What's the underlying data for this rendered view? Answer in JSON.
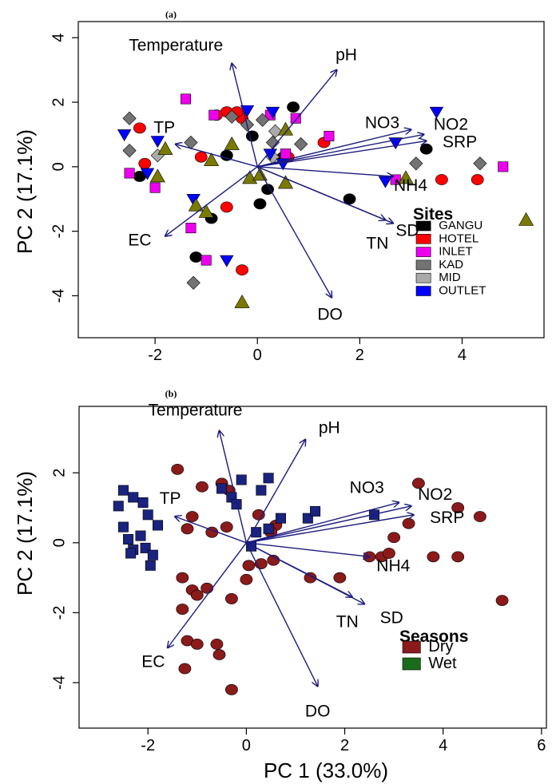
{
  "chart_data": [
    {
      "type": "scatter",
      "panel_tag": "(a)",
      "xlabel": "",
      "ylabel": "PC 2 (17.1%)",
      "xlim": [
        -3.5,
        5.6
      ],
      "ylim": [
        -5.3,
        4.5
      ],
      "xticks": [
        -2,
        0,
        2,
        4
      ],
      "yticks": [
        -4,
        -2,
        0,
        2,
        4
      ],
      "vectors": [
        {
          "label": "Temperature",
          "x": -0.5,
          "y": 3.2
        },
        {
          "label": "pH",
          "x": 1.55,
          "y": 3.0
        },
        {
          "label": "NO3",
          "x": 3.0,
          "y": 1.15
        },
        {
          "label": "NO2",
          "x": 3.25,
          "y": 1.0
        },
        {
          "label": "SRP",
          "x": 3.3,
          "y": 0.8
        },
        {
          "label": "NH4",
          "x": 2.65,
          "y": -0.3
        },
        {
          "label": "TP",
          "x": -1.6,
          "y": 0.7
        },
        {
          "label": "EC",
          "x": -1.8,
          "y": -2.15
        },
        {
          "label": "SD",
          "x": 2.65,
          "y": -1.75
        },
        {
          "label": "TN",
          "x": 2.5,
          "y": -1.65
        },
        {
          "label": "DO",
          "x": 1.45,
          "y": -4.05
        }
      ],
      "legend": {
        "title": "Sites",
        "items": [
          {
            "label": "GANGU",
            "color": "#000000",
            "shape": "circle"
          },
          {
            "label": "HOTEL",
            "color": "#ff0000",
            "shape": "circle"
          },
          {
            "label": "INLET",
            "color": "#ee00ee",
            "shape": "square"
          },
          {
            "label": "KAD",
            "color": "#737373",
            "shape": "diamond"
          },
          {
            "label": "MID",
            "color": "#aaaaaa",
            "shape": "square"
          },
          {
            "label": "OUTLET",
            "color": "#0000ff",
            "shape": "triangle-down"
          }
        ],
        "position": "bottom-right"
      },
      "series": [
        {
          "name": "GANGU",
          "color": "#000000",
          "shape": "circle",
          "points": [
            [
              -2.3,
              -0.3
            ],
            [
              -0.9,
              -1.6
            ],
            [
              -1.2,
              -2.8
            ],
            [
              -0.1,
              0.95
            ],
            [
              0.2,
              -0.7
            ],
            [
              0.05,
              -1.15
            ],
            [
              0.7,
              1.85
            ],
            [
              1.8,
              -1.0
            ],
            [
              3.3,
              0.55
            ],
            [
              0.5,
              0.3
            ],
            [
              -0.6,
              0.35
            ]
          ]
        },
        {
          "name": "HOTEL",
          "color": "#ff0000",
          "shape": "circle",
          "points": [
            [
              -2.3,
              1.2
            ],
            [
              -2.2,
              0.1
            ],
            [
              -1.1,
              0.3
            ],
            [
              -0.6,
              1.7
            ],
            [
              -0.3,
              1.5
            ],
            [
              -0.6,
              -1.25
            ],
            [
              -0.3,
              -3.2
            ],
            [
              1.3,
              0.75
            ],
            [
              0.6,
              0.3
            ],
            [
              3.6,
              -0.4
            ],
            [
              4.3,
              -0.4
            ],
            [
              -0.8,
              1.6
            ],
            [
              -0.4,
              1.7
            ]
          ]
        },
        {
          "name": "INLET",
          "color": "#ee00ee",
          "shape": "square",
          "points": [
            [
              -1.4,
              2.1
            ],
            [
              -1.3,
              -1.9
            ],
            [
              -1.0,
              -2.9
            ],
            [
              -2.5,
              -0.2
            ],
            [
              -2.0,
              -0.65
            ],
            [
              -0.85,
              1.6
            ],
            [
              0.75,
              1.5
            ],
            [
              1.4,
              0.95
            ],
            [
              0.55,
              0.4
            ],
            [
              2.7,
              -0.4
            ],
            [
              4.8,
              0.0
            ],
            [
              0.25,
              1.6
            ]
          ]
        },
        {
          "name": "KAD",
          "color": "#737373",
          "shape": "diamond",
          "points": [
            [
              -2.5,
              1.5
            ],
            [
              -2.5,
              0.5
            ],
            [
              -1.3,
              0.75
            ],
            [
              -0.5,
              1.55
            ],
            [
              0.3,
              0.75
            ],
            [
              0.85,
              0.7
            ],
            [
              3.1,
              0.1
            ],
            [
              4.35,
              0.1
            ],
            [
              -1.25,
              -3.6
            ],
            [
              -0.2,
              1.3
            ],
            [
              0.1,
              1.45
            ]
          ]
        },
        {
          "name": "MID",
          "color": "#aaaaaa",
          "shape": "diamond",
          "points": [
            [
              -1.95,
              0.35
            ],
            [
              0.3,
              0.3
            ],
            [
              0.35,
              1.1
            ]
          ]
        },
        {
          "name": "OUTLET",
          "color": "#0000ff",
          "shape": "triangle-down",
          "points": [
            [
              -2.6,
              1.0
            ],
            [
              -1.95,
              0.8
            ],
            [
              -2.15,
              -0.2
            ],
            [
              -1.25,
              -1.0
            ],
            [
              -0.6,
              -2.9
            ],
            [
              -0.2,
              1.75
            ],
            [
              0.25,
              0.4
            ],
            [
              0.5,
              0.1
            ],
            [
              2.7,
              0.75
            ],
            [
              3.5,
              1.7
            ],
            [
              2.5,
              -0.45
            ],
            [
              0.3,
              1.7
            ]
          ]
        },
        {
          "name": "",
          "color": "#7a7a00",
          "shape": "triangle-up",
          "points": [
            [
              -1.8,
              0.55
            ],
            [
              -1.95,
              -0.3
            ],
            [
              -1.2,
              -1.2
            ],
            [
              -1.0,
              -1.4
            ],
            [
              -0.5,
              0.7
            ],
            [
              -0.9,
              0.2
            ],
            [
              -0.15,
              -0.35
            ],
            [
              0.05,
              -0.25
            ],
            [
              0.55,
              -0.5
            ],
            [
              0.55,
              1.15
            ],
            [
              2.9,
              -0.35
            ],
            [
              5.25,
              -1.65
            ],
            [
              -0.3,
              -4.2
            ]
          ]
        }
      ]
    },
    {
      "type": "scatter",
      "panel_tag": "(b)",
      "xlabel": "PC 1 (33.0%)",
      "ylabel": "PC 2 (17.1%)",
      "xlim": [
        -3.4,
        6.1
      ],
      "ylim": [
        -5.3,
        3.9
      ],
      "xticks": [
        -2,
        0,
        2,
        4,
        6
      ],
      "yticks": [
        -4,
        -2,
        0,
        2
      ],
      "vectors": [
        {
          "label": "Temperature",
          "x": -0.55,
          "y": 3.2
        },
        {
          "label": "pH",
          "x": 1.2,
          "y": 2.95
        },
        {
          "label": "NO3",
          "x": 3.1,
          "y": 1.15
        },
        {
          "label": "NO2",
          "x": 3.35,
          "y": 1.05
        },
        {
          "label": "SRP",
          "x": 3.4,
          "y": 0.8
        },
        {
          "label": "NH4",
          "x": 2.5,
          "y": -0.4
        },
        {
          "label": "TP",
          "x": -1.45,
          "y": 0.75
        },
        {
          "label": "EC",
          "x": -1.6,
          "y": -3.0
        },
        {
          "label": "SD",
          "x": 2.4,
          "y": -1.75
        },
        {
          "label": "TN",
          "x": 2.15,
          "y": -1.55
        },
        {
          "label": "DO",
          "x": 1.45,
          "y": -4.1
        }
      ],
      "legend": {
        "title": "Seasons",
        "items": [
          {
            "label": "Dry",
            "color": "#8b1a1a",
            "shape": "square"
          },
          {
            "label": "Wet",
            "color": "#1a6b1a",
            "shape": "square"
          }
        ],
        "position": "bottom-right"
      },
      "series": [
        {
          "name": "Dry",
          "color": "#8b1a1a",
          "shape": "circle",
          "points": [
            [
              -1.4,
              2.1
            ],
            [
              -1.1,
              0.75
            ],
            [
              -1.2,
              0.4
            ],
            [
              -0.9,
              1.6
            ],
            [
              -0.5,
              1.7
            ],
            [
              -0.35,
              1.5
            ],
            [
              -0.4,
              0.45
            ],
            [
              -0.7,
              0.3
            ],
            [
              -1.3,
              -1.0
            ],
            [
              -1.1,
              -1.35
            ],
            [
              -1.3,
              -1.9
            ],
            [
              -1.0,
              -1.5
            ],
            [
              -0.8,
              -1.3
            ],
            [
              -0.3,
              -1.6
            ],
            [
              -1.2,
              -2.8
            ],
            [
              -1.0,
              -2.9
            ],
            [
              -0.6,
              -2.9
            ],
            [
              -0.55,
              -3.2
            ],
            [
              -1.25,
              -3.6
            ],
            [
              -0.3,
              -4.2
            ],
            [
              0.05,
              -0.65
            ],
            [
              0.25,
              0.8
            ],
            [
              0.6,
              0.5
            ],
            [
              0.55,
              -0.5
            ],
            [
              0.5,
              0.3
            ],
            [
              0.3,
              -0.6
            ],
            [
              0.0,
              -1.05
            ],
            [
              1.3,
              -1.0
            ],
            [
              1.9,
              -1.0
            ],
            [
              2.5,
              -0.4
            ],
            [
              2.75,
              -0.4
            ],
            [
              3.0,
              0.15
            ],
            [
              3.3,
              0.55
            ],
            [
              3.5,
              1.7
            ],
            [
              3.8,
              -0.4
            ],
            [
              4.3,
              1.0
            ],
            [
              4.3,
              -0.4
            ],
            [
              4.75,
              0.75
            ],
            [
              5.2,
              -1.65
            ],
            [
              2.9,
              -0.3
            ]
          ]
        },
        {
          "name": "Wet",
          "color": "#1a237e",
          "shape": "square",
          "points": [
            [
              -2.6,
              1.05
            ],
            [
              -2.5,
              1.5
            ],
            [
              -2.3,
              1.3
            ],
            [
              -2.1,
              1.15
            ],
            [
              -2.0,
              0.8
            ],
            [
              -1.8,
              0.5
            ],
            [
              -2.5,
              0.45
            ],
            [
              -2.4,
              0.1
            ],
            [
              -2.3,
              -0.2
            ],
            [
              -2.15,
              0.2
            ],
            [
              -2.05,
              -0.15
            ],
            [
              -1.9,
              -0.35
            ],
            [
              -2.35,
              -0.3
            ],
            [
              -1.95,
              -0.65
            ],
            [
              -0.5,
              1.55
            ],
            [
              -0.3,
              1.3
            ],
            [
              -0.1,
              1.8
            ],
            [
              -0.2,
              1.1
            ],
            [
              0.3,
              1.5
            ],
            [
              0.45,
              1.85
            ],
            [
              0.7,
              0.7
            ],
            [
              0.45,
              0.4
            ],
            [
              0.2,
              0.3
            ],
            [
              1.25,
              0.7
            ],
            [
              1.4,
              0.9
            ],
            [
              2.6,
              0.8
            ],
            [
              0.1,
              -0.1
            ]
          ]
        }
      ]
    }
  ]
}
